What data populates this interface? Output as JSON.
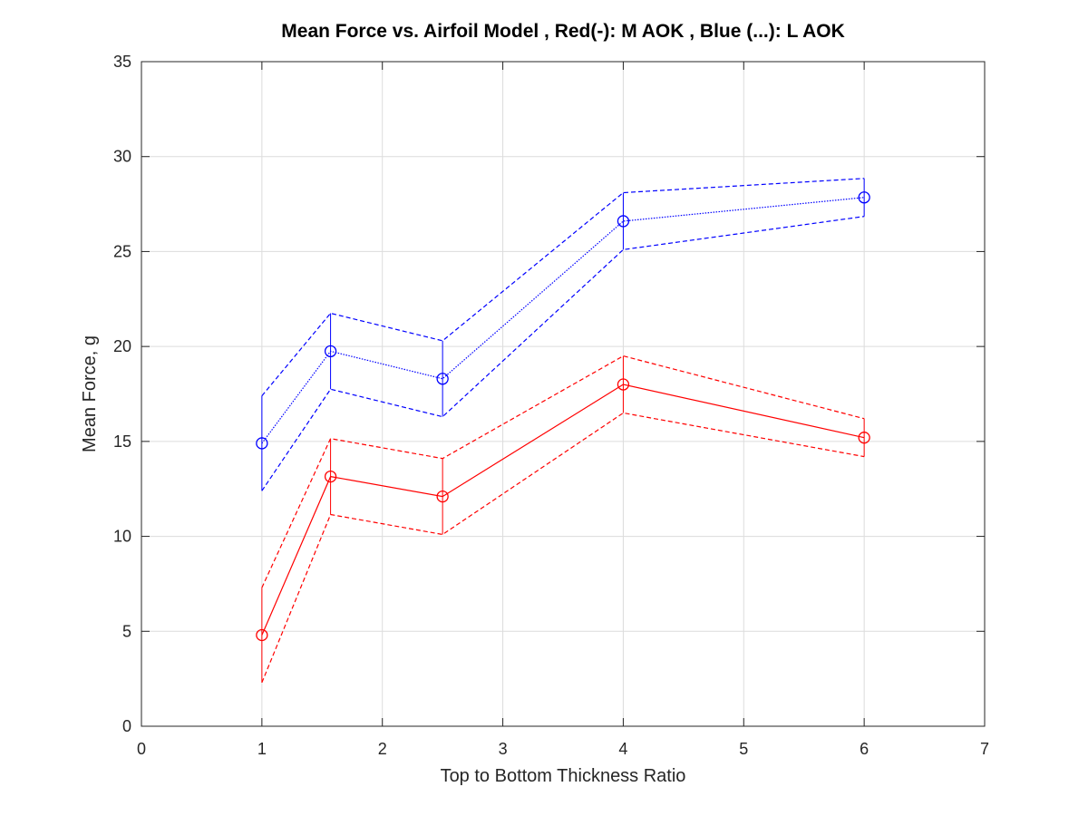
{
  "chart_data": {
    "type": "line",
    "title": "Mean Force vs. Airfoil Model , Red(-): M AOK , Blue (...): L AOK",
    "xlabel": "Top to Bottom Thickness Ratio",
    "ylabel": "Mean Force, g",
    "xlim": [
      0,
      7
    ],
    "ylim": [
      0,
      35
    ],
    "xticks": [
      0,
      1,
      2,
      3,
      4,
      5,
      6,
      7
    ],
    "yticks": [
      0,
      5,
      10,
      15,
      20,
      25,
      30,
      35
    ],
    "grid": true,
    "legend": "none",
    "x": [
      1,
      1.57,
      2.5,
      4,
      6
    ],
    "series": [
      {
        "color": "#0000ff",
        "line_style": "dotted",
        "marker": "circle",
        "values": [
          14.9,
          19.75,
          18.3,
          26.6,
          27.85
        ],
        "upper": [
          17.4,
          21.75,
          20.3,
          28.1,
          28.85
        ],
        "lower": [
          12.4,
          17.75,
          16.3,
          25.1,
          26.85
        ]
      },
      {
        "color": "#ff0000",
        "line_style": "solid",
        "marker": "circle",
        "values": [
          4.8,
          13.15,
          12.1,
          18.0,
          15.2
        ],
        "upper": [
          7.3,
          15.15,
          14.1,
          19.5,
          16.2
        ],
        "lower": [
          2.3,
          11.15,
          10.1,
          16.5,
          14.2
        ]
      }
    ]
  }
}
